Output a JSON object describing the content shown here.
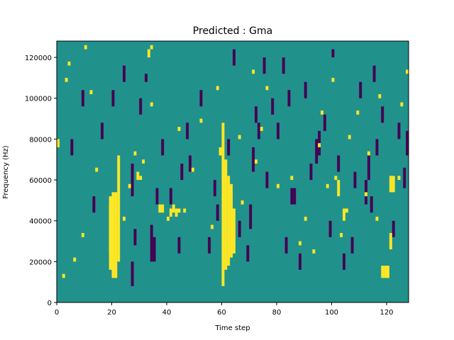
{
  "chart_data": {
    "type": "heatmap",
    "title": "Predicted : Gma",
    "xlabel": "Time step",
    "ylabel": "Frequency (Hz)",
    "xlim": [
      0,
      128
    ],
    "ylim": [
      0,
      128000
    ],
    "x_ticks": [
      0,
      20,
      40,
      60,
      80,
      100,
      120
    ],
    "x_tick_labels": [
      "0",
      "20",
      "40",
      "60",
      "80",
      "100",
      "120"
    ],
    "y_ticks": [
      0,
      20000,
      40000,
      60000,
      80000,
      100000,
      120000
    ],
    "y_tick_labels": [
      "0",
      "20000",
      "40000",
      "60000",
      "80000",
      "100000",
      "120000"
    ],
    "colormap": "viridis",
    "background_color": "#21918c",
    "high_color": "#fde725",
    "low_color": "#440154",
    "n_rows": 64,
    "n_cols": 128,
    "row_height_hz": 2000,
    "yellow_spans": [
      [
        20,
        6,
        27
      ],
      [
        21,
        6,
        27
      ],
      [
        22,
        10,
        36
      ],
      [
        19,
        8,
        26
      ],
      [
        19,
        12,
        24
      ],
      [
        60,
        4,
        44
      ],
      [
        61,
        8,
        35
      ],
      [
        62,
        9,
        31
      ],
      [
        63,
        11,
        29
      ],
      [
        64,
        12,
        23
      ],
      [
        59,
        36,
        38
      ],
      [
        118,
        6,
        9
      ],
      [
        119,
        6,
        9
      ],
      [
        120,
        6,
        9
      ],
      [
        121,
        27,
        31
      ],
      [
        122,
        27,
        31
      ],
      [
        121,
        13,
        17
      ],
      [
        104,
        20,
        23
      ],
      [
        105,
        22,
        23
      ],
      [
        103,
        16,
        17
      ],
      [
        102,
        26,
        30
      ],
      [
        101,
        30,
        31
      ],
      [
        37,
        22,
        24
      ],
      [
        38,
        22,
        24
      ],
      [
        41,
        21,
        23
      ],
      [
        42,
        22,
        24
      ],
      [
        43,
        21,
        23
      ],
      [
        44,
        22,
        23
      ],
      [
        29,
        30,
        32
      ],
      [
        30,
        30,
        31
      ],
      [
        34,
        62,
        63
      ],
      [
        33,
        60,
        62
      ],
      [
        0,
        38,
        40
      ],
      [
        4,
        58,
        59
      ],
      [
        3,
        54,
        55
      ],
      [
        10,
        62,
        63
      ],
      [
        12,
        51,
        52
      ],
      [
        28,
        36,
        37
      ],
      [
        31,
        34,
        35
      ],
      [
        40,
        20,
        21
      ],
      [
        46,
        22,
        23
      ],
      [
        52,
        44,
        45
      ],
      [
        58,
        52,
        53
      ],
      [
        66,
        40,
        41
      ],
      [
        71,
        56,
        57
      ],
      [
        76,
        52,
        53
      ],
      [
        80,
        28,
        29
      ],
      [
        85,
        30,
        31
      ],
      [
        90,
        20,
        21
      ],
      [
        95,
        38,
        39
      ],
      [
        98,
        28,
        29
      ],
      [
        100,
        54,
        55
      ],
      [
        109,
        46,
        47
      ],
      [
        112,
        26,
        27
      ],
      [
        117,
        50,
        51
      ],
      [
        125,
        48,
        49
      ],
      [
        127,
        56,
        57
      ],
      [
        9,
        16,
        17
      ],
      [
        14,
        32,
        33
      ],
      [
        24,
        20,
        21
      ],
      [
        34,
        48,
        49
      ],
      [
        49,
        32,
        33
      ],
      [
        67,
        24,
        25
      ],
      [
        74,
        42,
        43
      ],
      [
        88,
        14,
        15
      ],
      [
        93,
        12,
        13
      ],
      [
        113,
        36,
        37
      ],
      [
        2,
        6,
        7
      ],
      [
        6,
        10,
        11
      ],
      [
        26,
        28,
        29
      ],
      [
        44,
        42,
        43
      ],
      [
        56,
        18,
        19
      ],
      [
        72,
        34,
        35
      ],
      [
        96,
        46,
        47
      ],
      [
        106,
        40,
        41
      ],
      [
        116,
        20,
        21
      ],
      [
        124,
        30,
        31
      ]
    ],
    "dark_spans": [
      [
        27,
        4,
        10
      ],
      [
        27,
        26,
        34
      ],
      [
        28,
        14,
        18
      ],
      [
        34,
        10,
        19
      ],
      [
        35,
        10,
        16
      ],
      [
        69,
        10,
        14
      ],
      [
        70,
        18,
        24
      ],
      [
        71,
        32,
        38
      ],
      [
        73,
        40,
        44
      ],
      [
        75,
        56,
        60
      ],
      [
        85,
        24,
        28
      ],
      [
        86,
        24,
        28
      ],
      [
        94,
        34,
        40
      ],
      [
        95,
        36,
        42
      ],
      [
        112,
        24,
        30
      ],
      [
        113,
        30,
        36
      ],
      [
        114,
        22,
        26
      ],
      [
        126,
        28,
        33
      ],
      [
        127,
        36,
        42
      ],
      [
        32,
        54,
        56
      ],
      [
        55,
        12,
        16
      ],
      [
        57,
        26,
        30
      ],
      [
        47,
        40,
        44
      ],
      [
        48,
        32,
        36
      ],
      [
        78,
        46,
        50
      ],
      [
        80,
        40,
        44
      ],
      [
        82,
        56,
        60
      ],
      [
        83,
        12,
        16
      ],
      [
        88,
        8,
        12
      ],
      [
        92,
        30,
        34
      ],
      [
        97,
        42,
        46
      ],
      [
        99,
        16,
        20
      ],
      [
        107,
        12,
        16
      ],
      [
        110,
        50,
        54
      ],
      [
        115,
        54,
        58
      ],
      [
        124,
        40,
        44
      ],
      [
        13,
        22,
        26
      ],
      [
        16,
        40,
        44
      ],
      [
        24,
        54,
        58
      ],
      [
        30,
        46,
        50
      ],
      [
        38,
        36,
        40
      ],
      [
        41,
        24,
        28
      ],
      [
        45,
        30,
        34
      ],
      [
        52,
        48,
        52
      ],
      [
        64,
        58,
        62
      ],
      [
        66,
        16,
        20
      ],
      [
        72,
        44,
        48
      ],
      [
        90,
        50,
        54
      ],
      [
        100,
        60,
        62
      ],
      [
        104,
        8,
        12
      ],
      [
        108,
        28,
        32
      ],
      [
        118,
        44,
        48
      ],
      [
        122,
        16,
        20
      ],
      [
        5,
        36,
        40
      ],
      [
        9,
        48,
        52
      ],
      [
        20,
        48,
        52
      ],
      [
        36,
        24,
        28
      ],
      [
        44,
        12,
        16
      ],
      [
        58,
        20,
        24
      ],
      [
        62,
        36,
        40
      ],
      [
        76,
        28,
        32
      ],
      [
        84,
        48,
        52
      ],
      [
        102,
        32,
        36
      ],
      [
        116,
        36,
        40
      ]
    ]
  }
}
